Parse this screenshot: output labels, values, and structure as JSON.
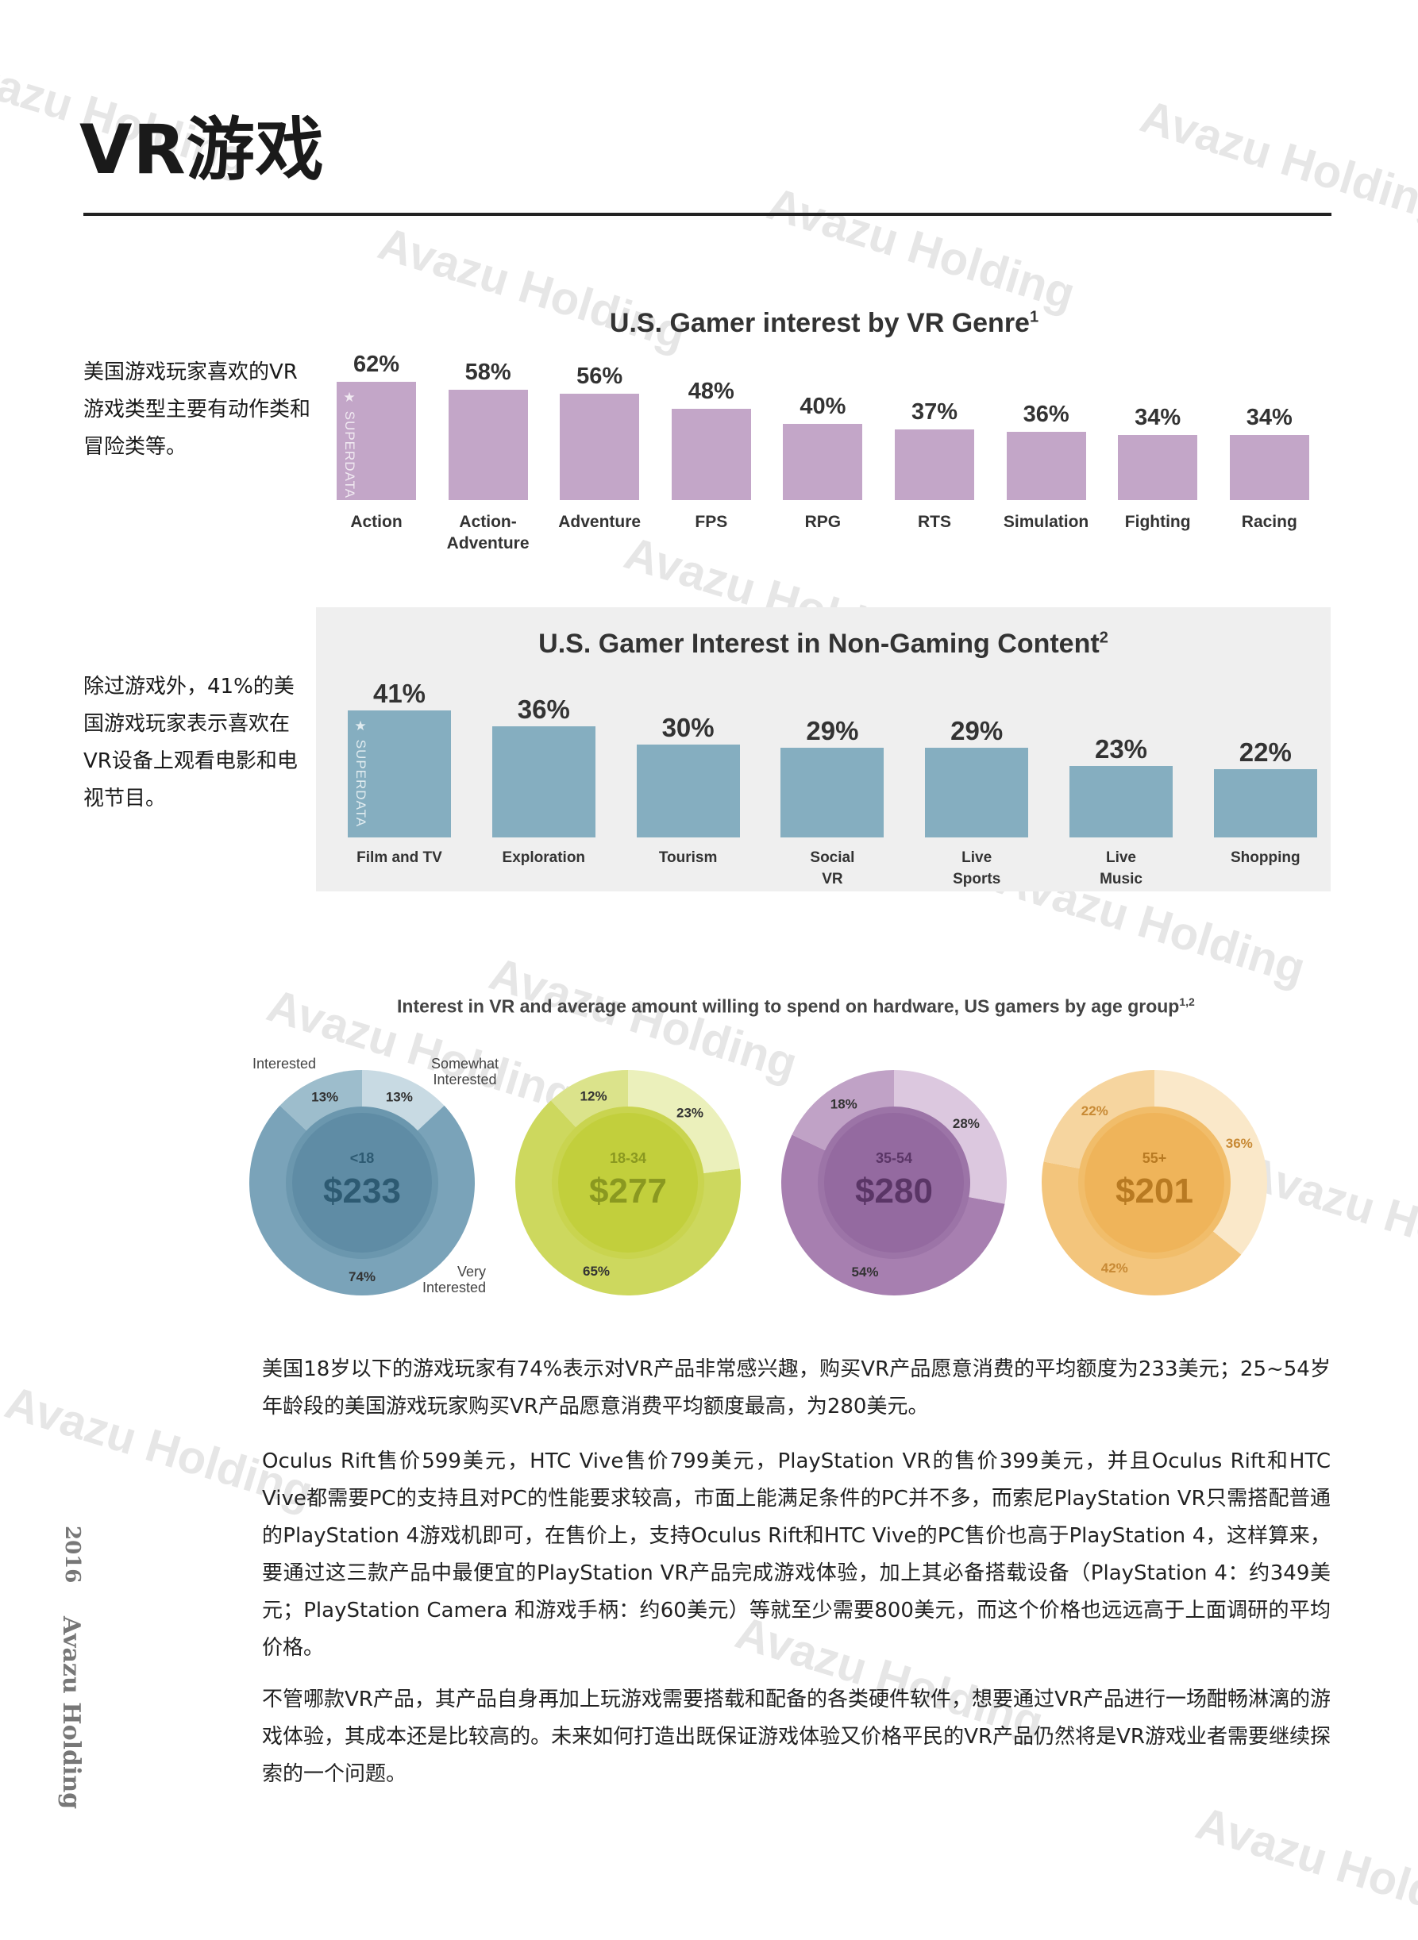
{
  "page": {
    "title": "VR游戏",
    "watermark": "Avazu Holding",
    "footer_year": "2016",
    "footer_brand": "Avazu Holding",
    "source_mark": "SUPERDATA"
  },
  "notes": {
    "genre_note": "美国游戏玩家喜欢的VR游戏类型主要有动作类和冒险类等。",
    "content_note": "除过游戏外，41%的美国游戏玩家表示喜欢在VR设备上观看电影和电视节目。"
  },
  "paragraphs": [
    "美国18岁以下的游戏玩家有74%表示对VR产品非常感兴趣，购买VR产品愿意消费的平均额度为233美元；25~54岁年龄段的美国游戏玩家购买VR产品愿意消费平均额度最高，为280美元。",
    "Oculus Rift售价599美元，HTC Vive售价799美元，PlayStation VR的售价399美元，并且Oculus Rift和HTC Vive都需要PC的支持且对PC的性能要求较高，市面上能满足条件的PC并不多，而索尼PlayStation VR只需搭配普通的PlayStation 4游戏机即可，在售价上，支持Oculus Rift和HTC Vive的PC售价也高于PlayStation 4，这样算来，要通过这三款产品中最便宜的PlayStation VR产品完成游戏体验，加上其必备搭载设备（PlayStation 4：约349美元；PlayStation Camera 和游戏手柄：约60美元）等就至少需要800美元，而这个价格也远远高于上面调研的平均价格。",
    "不管哪款VR产品，其产品自身再加上玩游戏需要搭载和配备的各类硬件软件，想要通过VR产品进行一场酣畅淋漓的游戏体验，其成本还是比较高的。未来如何打造出既保证游戏体验又价格平民的VR产品仍然将是VR游戏业者需要继续探索的一个问题。"
  ],
  "chart_data": [
    {
      "type": "bar",
      "title": "U.S. Gamer interest by VR Genre",
      "title_sup": "1",
      "categories": [
        "Action",
        "Action-Adventure",
        "Adventure",
        "FPS",
        "RPG",
        "RTS",
        "Simulation",
        "Fighting",
        "Racing"
      ],
      "category_lines": [
        [
          "Action"
        ],
        [
          "Action-",
          "Adventure"
        ],
        [
          "Adventure"
        ],
        [
          "FPS"
        ],
        [
          "RPG"
        ],
        [
          "RTS"
        ],
        [
          "Simulation"
        ],
        [
          "Fighting"
        ],
        [
          "Racing"
        ]
      ],
      "values": [
        62,
        58,
        56,
        48,
        40,
        37,
        36,
        34,
        34
      ],
      "value_labels": [
        "62%",
        "58%",
        "56%",
        "48%",
        "40%",
        "37%",
        "36%",
        "34%",
        "34%"
      ],
      "unit": "%",
      "color": "#c3a6c8"
    },
    {
      "type": "bar",
      "title": "U.S. Gamer Interest in Non-Gaming Content",
      "title_sup": "2",
      "categories": [
        "Film and TV",
        "Exploration",
        "Tourism",
        "Social VR",
        "Live Sports",
        "Live Music",
        "Shopping"
      ],
      "category_lines": [
        [
          "Film and TV"
        ],
        [
          "Exploration"
        ],
        [
          "Tourism"
        ],
        [
          "Social",
          "VR"
        ],
        [
          "Live",
          "Sports"
        ],
        [
          "Live",
          "Music"
        ],
        [
          "Shopping"
        ]
      ],
      "values": [
        41,
        36,
        30,
        29,
        29,
        23,
        22
      ],
      "value_labels": [
        "41%",
        "36%",
        "30%",
        "29%",
        "29%",
        "23%",
        "22%"
      ],
      "unit": "%",
      "color": "#85aec0"
    },
    {
      "type": "pie",
      "title": "Interest in VR and average amount willing to spend on hardware, US gamers by age group",
      "title_sup": "1,2",
      "legend_labels": {
        "interested": "Interested",
        "somewhat": [
          "Somewhat",
          "Interested"
        ],
        "very": [
          "Very",
          "Interested"
        ]
      },
      "groups": [
        {
          "age": "<18",
          "spend": "$233",
          "interested": 13,
          "somewhat": 13,
          "very": 74,
          "labels": [
            "13%",
            "13%",
            "74%"
          ],
          "colors": {
            "very": "#7aa3b9",
            "interested": "#9dbdcc",
            "somewhat": "#c8dae3",
            "center": "#5f8ca5",
            "ring": "#6b97ae",
            "text": "#2d5a72"
          }
        },
        {
          "age": "18-34",
          "spend": "$277",
          "interested": 12,
          "somewhat": 23,
          "very": 65,
          "labels": [
            "12%",
            "23%",
            "65%"
          ],
          "colors": {
            "very": "#cdd85e",
            "interested": "#dbe38b",
            "somewhat": "#ebf0bb",
            "center": "#c2cf3c",
            "ring": "#c9d44f",
            "text": "#8a9820"
          }
        },
        {
          "age": "35-54",
          "spend": "$280",
          "interested": 18,
          "somewhat": 28,
          "very": 54,
          "labels": [
            "18%",
            "28%",
            "54%"
          ],
          "colors": {
            "very": "#a77fb0",
            "interested": "#c0a2c6",
            "somewhat": "#dcc8df",
            "center": "#946aa0",
            "ring": "#9c74a7",
            "text": "#5a3566"
          }
        },
        {
          "age": "55+",
          "spend": "$201",
          "interested": 22,
          "somewhat": 36,
          "very": 42,
          "labels": [
            "22%",
            "36%",
            "42%"
          ],
          "colors": {
            "very": "#f3c57c",
            "interested": "#f6d59f",
            "somewhat": "#fae8c9",
            "center": "#efb45a",
            "ring": "#f1bd6a",
            "text": "#b87a22"
          }
        }
      ]
    }
  ]
}
